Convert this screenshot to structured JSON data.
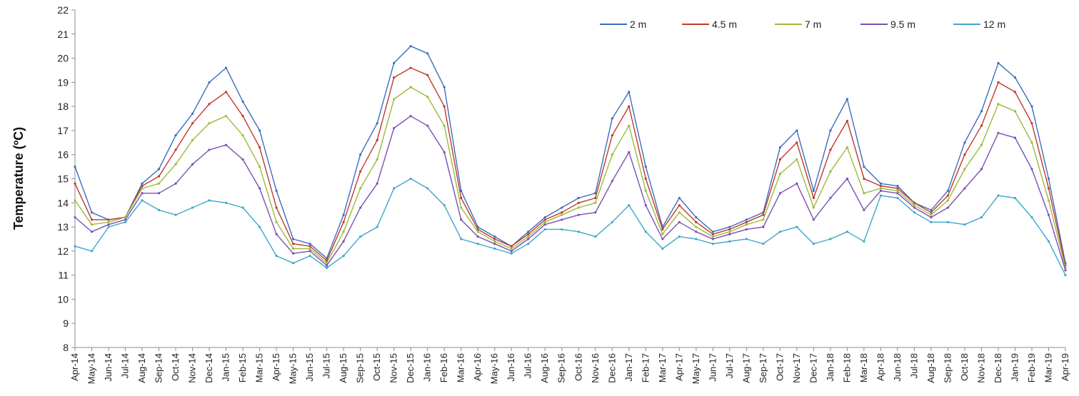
{
  "chart_data": {
    "type": "line",
    "ylabel": "Temperature (ºC)",
    "xlabel": "",
    "ylim": [
      8,
      22
    ],
    "yticks": [
      "8",
      "9",
      "10",
      "11",
      "12",
      "13",
      "14",
      "15",
      "16",
      "17",
      "18",
      "19",
      "20",
      "21",
      "22"
    ],
    "categories": [
      "Apr-14",
      "May-14",
      "Jun-14",
      "Jul-14",
      "Aug-14",
      "Sep-14",
      "Oct-14",
      "Nov-14",
      "Dec-14",
      "Jan-15",
      "Feb-15",
      "Mar-15",
      "Apr-15",
      "May-15",
      "Jun-15",
      "Jul-15",
      "Aug-15",
      "Sep-15",
      "Oct-15",
      "Nov-15",
      "Dec-15",
      "Jan-16",
      "Feb-16",
      "Mar-16",
      "Apr-16",
      "May-16",
      "Jun-16",
      "Jul-16",
      "Aug-16",
      "Sep-16",
      "Oct-16",
      "Nov-16",
      "Dec-16",
      "Jan-17",
      "Feb-17",
      "Mar-17",
      "Apr-17",
      "May-17",
      "Jun-17",
      "Jul-17",
      "Aug-17",
      "Sep-17",
      "Oct-17",
      "Nov-17",
      "Dec-17",
      "Jan-18",
      "Feb-18",
      "Mar-18",
      "Apr-18",
      "Jun-18",
      "Jul-18",
      "Aug-18",
      "Sep-18",
      "Oct-18",
      "Nov-18",
      "Dec-18",
      "Jan-19",
      "Feb-19",
      "Mar-19",
      "Apr-19"
    ],
    "legend_position": "top-right",
    "grid": false,
    "series": [
      {
        "name": "2 m",
        "color": "#3b6dbf",
        "values": [
          15.5,
          13.6,
          13.3,
          13.4,
          14.8,
          15.4,
          16.8,
          17.7,
          19.0,
          19.6,
          18.2,
          17.0,
          14.5,
          12.5,
          12.3,
          11.7,
          13.5,
          16.0,
          17.3,
          19.8,
          20.5,
          20.2,
          18.8,
          14.5,
          13.0,
          12.6,
          12.2,
          12.8,
          13.4,
          13.8,
          14.2,
          14.4,
          17.5,
          18.6,
          15.5,
          13.0,
          14.2,
          13.4,
          12.8,
          13.0,
          13.3,
          13.6,
          16.3,
          17.0,
          14.5,
          17.0,
          18.3,
          15.5,
          14.8,
          14.7,
          14.0,
          13.7,
          14.5,
          16.5,
          17.8,
          19.8,
          19.2,
          18.0,
          15.0,
          11.5
        ]
      },
      {
        "name": "4.5 m",
        "color": "#c0392b",
        "values": [
          14.8,
          13.3,
          13.3,
          13.4,
          14.7,
          15.1,
          16.2,
          17.3,
          18.1,
          18.6,
          17.6,
          16.3,
          13.8,
          12.3,
          12.2,
          11.6,
          13.2,
          15.3,
          16.6,
          19.2,
          19.6,
          19.3,
          18.0,
          14.2,
          12.9,
          12.5,
          12.2,
          12.7,
          13.3,
          13.6,
          14.0,
          14.2,
          16.8,
          18.0,
          15.0,
          12.9,
          13.9,
          13.2,
          12.7,
          12.9,
          13.2,
          13.5,
          15.8,
          16.5,
          14.2,
          16.2,
          17.4,
          15.0,
          14.7,
          14.6,
          14.0,
          13.6,
          14.3,
          16.0,
          17.2,
          19.0,
          18.6,
          17.3,
          14.6,
          11.4
        ]
      },
      {
        "name": "7 m",
        "color": "#9bbb3b",
        "values": [
          14.1,
          13.1,
          13.2,
          13.4,
          14.6,
          14.8,
          15.6,
          16.6,
          17.3,
          17.6,
          16.8,
          15.5,
          13.2,
          12.1,
          12.1,
          11.5,
          12.8,
          14.6,
          15.8,
          18.3,
          18.8,
          18.4,
          17.2,
          13.8,
          12.8,
          12.4,
          12.1,
          12.6,
          13.2,
          13.5,
          13.8,
          14.0,
          16.0,
          17.2,
          14.5,
          12.7,
          13.6,
          13.0,
          12.6,
          12.8,
          13.1,
          13.3,
          15.2,
          15.8,
          13.8,
          15.3,
          16.3,
          14.4,
          14.6,
          14.5,
          13.9,
          13.5,
          14.1,
          15.4,
          16.4,
          18.1,
          17.8,
          16.5,
          14.1,
          11.3
        ]
      },
      {
        "name": "9.5 m",
        "color": "#7b4fb3",
        "values": [
          13.4,
          12.8,
          13.1,
          13.3,
          14.4,
          14.4,
          14.8,
          15.6,
          16.2,
          16.4,
          15.8,
          14.6,
          12.7,
          11.9,
          12.0,
          11.4,
          12.4,
          13.8,
          14.8,
          17.1,
          17.6,
          17.2,
          16.1,
          13.3,
          12.6,
          12.3,
          12.0,
          12.5,
          13.1,
          13.3,
          13.5,
          13.6,
          14.9,
          16.1,
          13.9,
          12.5,
          13.2,
          12.8,
          12.5,
          12.7,
          12.9,
          13.0,
          14.4,
          14.8,
          13.3,
          14.2,
          15.0,
          13.7,
          14.5,
          14.4,
          13.8,
          13.4,
          13.8,
          14.6,
          15.4,
          16.9,
          16.7,
          15.4,
          13.5,
          11.2
        ]
      },
      {
        "name": "12 m",
        "color": "#3fa7c9",
        "values": [
          12.2,
          12.0,
          13.0,
          13.2,
          14.1,
          13.7,
          13.5,
          13.8,
          14.1,
          14.0,
          13.8,
          13.0,
          11.8,
          11.5,
          11.8,
          11.3,
          11.8,
          12.6,
          13.0,
          14.6,
          15.0,
          14.6,
          13.9,
          12.5,
          12.3,
          12.1,
          11.9,
          12.3,
          12.9,
          12.9,
          12.8,
          12.6,
          13.2,
          13.9,
          12.8,
          12.1,
          12.6,
          12.5,
          12.3,
          12.4,
          12.5,
          12.3,
          12.8,
          13.0,
          12.3,
          12.5,
          12.8,
          12.4,
          14.3,
          14.2,
          13.6,
          13.2,
          13.2,
          13.1,
          13.4,
          14.3,
          14.2,
          13.4,
          12.4,
          11.0
        ]
      }
    ]
  }
}
